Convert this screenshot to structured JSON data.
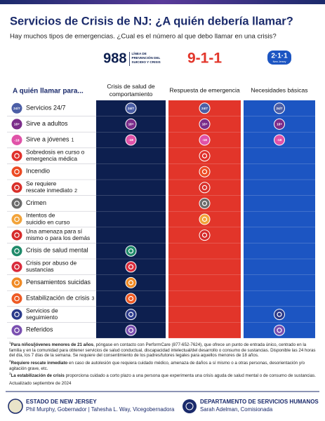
{
  "header": {
    "title": "Servicios de Crisis de NJ: ¿A quién debería llamar?",
    "subtitle": "Hay muchos tipos de emergencias. ¿Cual es el número al que debo llamar en una crisis?"
  },
  "table": {
    "row_header": "A quién llamar para...",
    "columns": [
      {
        "number": "988",
        "tagline": [
          "LÍNEA DE",
          "PREVENCIÓN DEL",
          "SUICIDIO Y CRISIS"
        ],
        "label": [
          "Crisis de salud de",
          "comportamiento"
        ],
        "color": "#0d1f4f"
      },
      {
        "number": "9-1-1",
        "label": [
          "Respuesta de emergencia"
        ],
        "color": "#e2352a"
      },
      {
        "number": "2·1·1",
        "badge": "New Jersey",
        "label": [
          "Necesidades básicas"
        ],
        "color": "#1c55c2"
      }
    ],
    "rows": [
      {
        "label": [
          "Servicios 24/7"
        ],
        "icon": "24/7",
        "color": "#4b5ea6",
        "cells": [
          true,
          true,
          true
        ]
      },
      {
        "label": [
          "Sirve a adultos"
        ],
        "icon": "18+",
        "color": "#7b2d8a",
        "cells": [
          true,
          true,
          true
        ]
      },
      {
        "label": [
          "Sirve a jóvenes"
        ],
        "note": "1",
        "icon": "-18",
        "color": "#e052a8",
        "cells": [
          true,
          true,
          true
        ]
      },
      {
        "label": [
          "Sobredosis en curso o",
          "emergencia médica"
        ],
        "color": "#e0312b",
        "cells": [
          false,
          true,
          false
        ]
      },
      {
        "label": [
          "Incendio"
        ],
        "color": "#ec4a23",
        "cells": [
          false,
          true,
          false
        ]
      },
      {
        "label": [
          "Se requiere",
          "rescate inmediato"
        ],
        "note": "2",
        "color": "#d9302a",
        "cells": [
          false,
          true,
          false
        ]
      },
      {
        "label": [
          "Crimen"
        ],
        "color": "#6b6b6b",
        "cells": [
          false,
          true,
          false
        ]
      },
      {
        "label": [
          "Intentos de",
          "suicidio en curso"
        ],
        "color": "#f2a33a",
        "cells": [
          false,
          true,
          false
        ]
      },
      {
        "label": [
          "Una amenaza para sí",
          "mismo o para los demás"
        ],
        "color": "#d62b2b",
        "cells": [
          false,
          true,
          false
        ]
      },
      {
        "label": [
          "Crisis de salud mental"
        ],
        "color": "#1f8a6a",
        "cells": [
          true,
          false,
          false
        ]
      },
      {
        "label": [
          "Crisis por abuso de",
          "sustancias"
        ],
        "color": "#d92c3c",
        "cells": [
          true,
          false,
          false
        ]
      },
      {
        "label": [
          "Pensamientos suicidas"
        ],
        "color": "#f08a24",
        "cells": [
          true,
          false,
          false
        ]
      },
      {
        "label": [
          "Estabilización de crisis"
        ],
        "note": "3",
        "color": "#ee5a24",
        "cells": [
          true,
          false,
          false
        ]
      },
      {
        "label": [
          "Servicios de",
          "seguimiento"
        ],
        "color": "#2b3a8a",
        "cells": [
          true,
          false,
          true
        ]
      },
      {
        "label": [
          "Referidos"
        ],
        "color": "#7a4fb0",
        "cells": [
          true,
          false,
          true
        ]
      }
    ]
  },
  "footnotes": [
    {
      "mark": "1",
      "bold": "Para niños/jóvenes menores de 21 años",
      "text": ", póngase en contacto con PerformCare (877-652-7624), que ofrece un punto de entrada único, centrado en la familia y en la comunidad para obtener servicios de salud conductual, discapacidad intelectual/del desarrollo o consumo de sustancias. Disponible las 24 horas del día, los 7 días de la semana. Se requiere del consentimiento de los padres/tutores legales para aquellos menores de 18 años."
    },
    {
      "mark": "2",
      "bold": "Requiere rescate inmediato",
      "text": " en caso de autolesión que requiera cuidado médico, amenaza de daños a sí mismo o a otras personas, desorientación y/o agitación grave, etc."
    },
    {
      "mark": "3",
      "bold": "La estabilización de crisis",
      "text": " proporciona cuidado a corto plazo a una persona que experimenta una crisis aguda de salud mental o de consumo de sustancias."
    }
  ],
  "updated": "Actualizado septiembre de 2024",
  "footer": {
    "left": {
      "title": "ESTADO DE NEW JERSEY",
      "names": "Phil Murphy, Gobernador | Tahesha L. Way, Vicegobernadora"
    },
    "right": {
      "title": "DEPARTAMENTO DE SERVICIOS HUMANOS",
      "names": "Sarah Adelman, Comisionada"
    }
  }
}
